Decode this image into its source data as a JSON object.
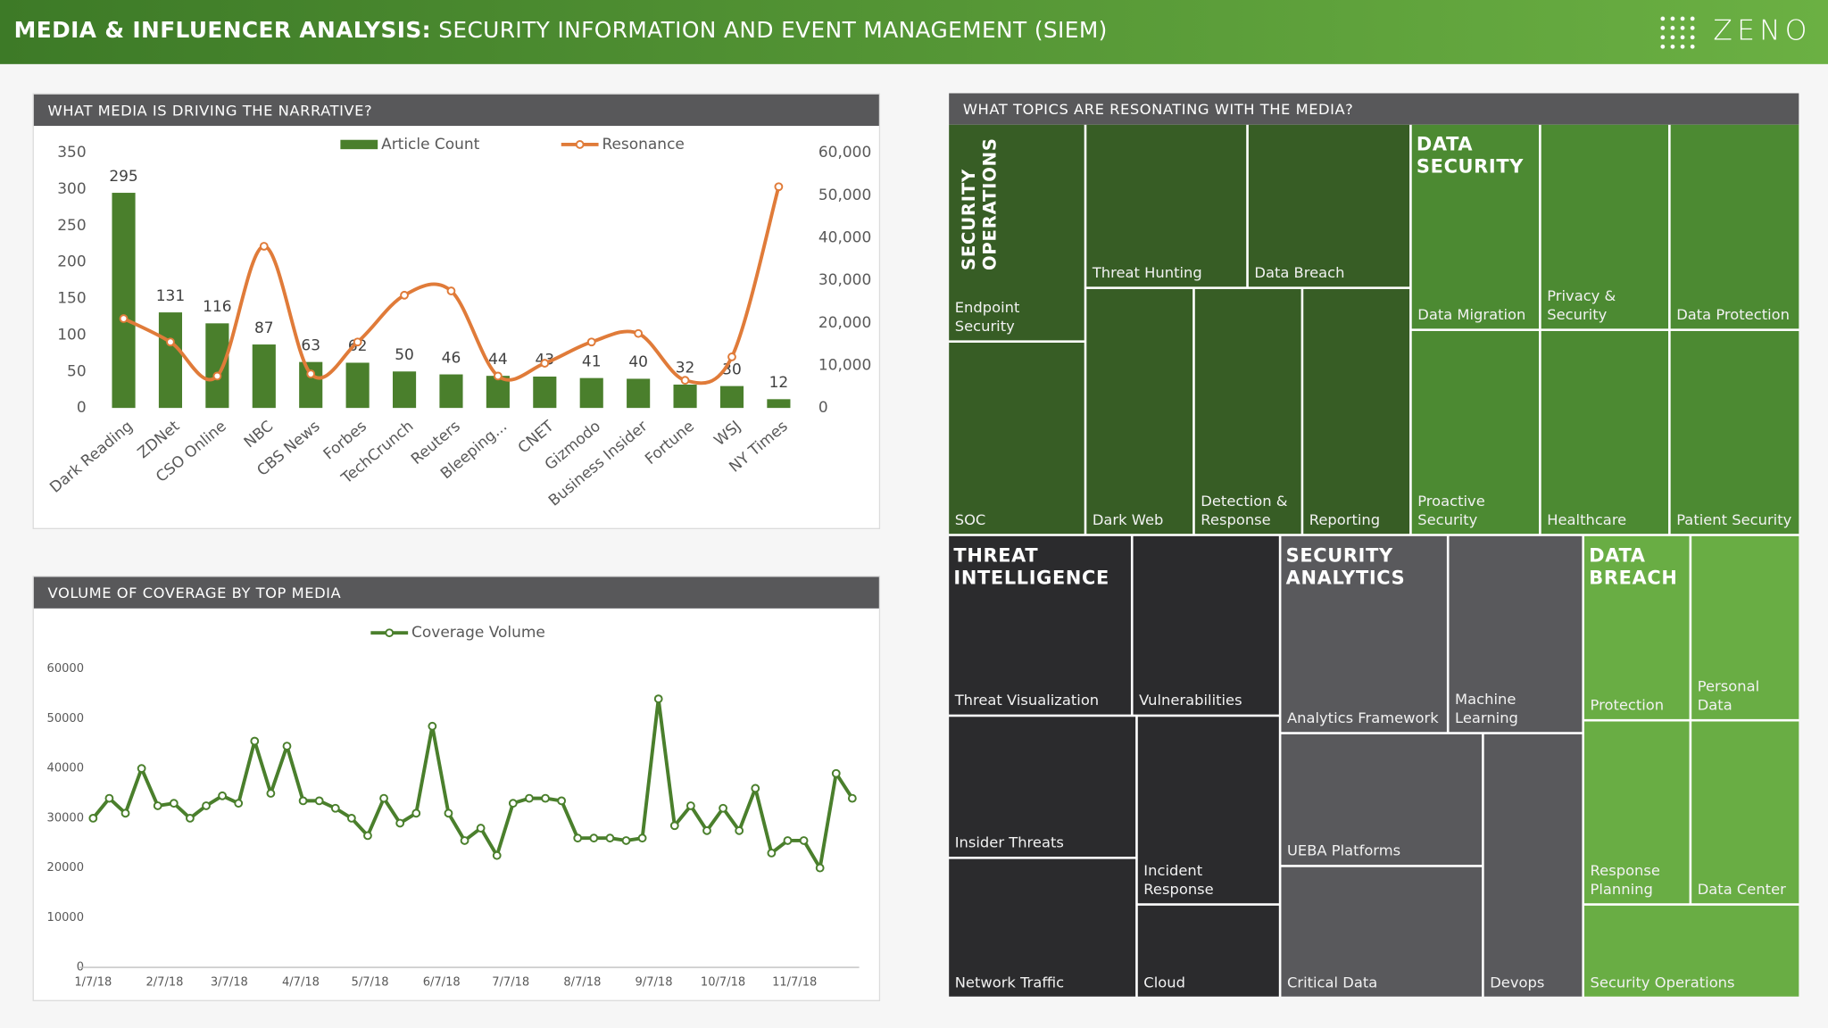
{
  "header": {
    "title_bold": "MEDIA & INFLUENCER ANALYSIS:",
    "title": "SECURITY INFORMATION AND EVENT MANAGEMENT (SIEM)",
    "logo": "ZENO"
  },
  "chart_data": [
    {
      "type": "bar",
      "title": "WHAT MEDIA IS DRIVING THE NARRATIVE?",
      "categories": [
        "Dark Reading",
        "ZDNet",
        "CSO Online",
        "NBC",
        "CBS News",
        "Forbes",
        "TechCrunch",
        "Reuters",
        "Bleeping...",
        "CNET",
        "Gizmodo",
        "Business Insider",
        "Fortune",
        "WSJ",
        "NY Times"
      ],
      "series": [
        {
          "name": "Article Count",
          "color": "#4a7f2c",
          "values": [
            295,
            131,
            116,
            87,
            63,
            62,
            50,
            46,
            44,
            43,
            41,
            40,
            32,
            30,
            12
          ]
        },
        {
          "name": "Resonance",
          "color": "#e07b39",
          "type": "line",
          "axis": "y2",
          "values": [
            21000,
            15500,
            7500,
            38000,
            8000,
            15500,
            26500,
            27500,
            7500,
            10500,
            15500,
            17500,
            6500,
            12000,
            52000
          ]
        }
      ],
      "ylim": [
        0,
        350
      ],
      "yticks": [
        0,
        50,
        100,
        150,
        200,
        250,
        300,
        350
      ],
      "y2lim": [
        0,
        60000
      ],
      "y2ticks": [
        0,
        {
          "value": 10000,
          "label": "10,000"
        },
        {
          "value": 20000,
          "label": "20,000"
        },
        {
          "value": 30000,
          "label": "30,000"
        },
        {
          "value": 40000,
          "label": "40,000"
        },
        {
          "value": 50000,
          "label": "50,000"
        },
        {
          "value": 60000,
          "label": "60,000"
        }
      ],
      "legend": "top"
    },
    {
      "type": "line",
      "title": "VOLUME OF COVERAGE BY TOP MEDIA",
      "x": [
        "1/7/18",
        "1/14/18",
        "1/21/18",
        "1/28/18",
        "2/4/18",
        "2/11/18",
        "2/18/18",
        "2/25/18",
        "3/4/18",
        "3/11/18",
        "3/18/18",
        "3/25/18",
        "4/1/18",
        "4/8/18",
        "4/15/18",
        "4/22/18",
        "4/29/18",
        "5/6/18",
        "5/13/18",
        "5/20/18",
        "5/27/18",
        "6/3/18",
        "6/10/18",
        "6/17/18",
        "6/24/18",
        "7/1/18",
        "7/8/18",
        "7/15/18",
        "7/22/18",
        "7/29/18",
        "8/5/18",
        "8/12/18",
        "8/19/18",
        "8/26/18",
        "9/2/18",
        "9/9/18",
        "9/16/18",
        "9/23/18",
        "9/30/18",
        "10/7/18",
        "10/14/18",
        "10/21/18",
        "10/28/18",
        "11/4/18",
        "11/11/18",
        "11/18/18",
        "11/25/18",
        "12/2/18"
      ],
      "series": [
        {
          "name": "Coverage Volume",
          "color": "#4a7f2c",
          "values": [
            30000,
            34000,
            31000,
            40000,
            32500,
            33000,
            30000,
            32500,
            34500,
            33000,
            45500,
            35000,
            44500,
            33500,
            33500,
            32000,
            30000,
            26500,
            34000,
            29000,
            31000,
            48500,
            31000,
            25500,
            28000,
            22500,
            33000,
            34000,
            34000,
            33500,
            26000,
            26000,
            26000,
            25500,
            26000,
            54000,
            28500,
            32500,
            27500,
            32000,
            27500,
            36000,
            23000,
            25500,
            25500,
            20000,
            39000,
            34000
          ]
        }
      ],
      "xlim": [
        "1/1/18",
        "12/5/18"
      ],
      "xticks": [
        "1/7/18",
        "2/7/18",
        "3/7/18",
        "4/7/18",
        "5/7/18",
        "6/7/18",
        "7/7/18",
        "8/7/18",
        "9/7/18",
        "10/7/18",
        "11/7/18"
      ],
      "ylim": [
        0,
        60000
      ],
      "yticks": [
        0,
        10000,
        20000,
        30000,
        40000,
        50000,
        60000
      ],
      "legend": "top"
    },
    {
      "type": "treemap",
      "title": "WHAT TOPICS ARE RESONATING WITH THE MEDIA?",
      "groups": [
        {
          "name": "SECURITY OPERATIONS",
          "color": "#375d25",
          "children": [
            "Endpoint Security",
            "SOC",
            "Threat Hunting",
            "Data Breach",
            "Dark Web",
            "Detection & Response",
            "Reporting"
          ]
        },
        {
          "name": "DATA SECURITY",
          "color": "#4c8a32",
          "children": [
            "Data Migration",
            "Privacy & Security",
            "Data Protection",
            "Proactive Security",
            "Healthcare",
            "Patient Security"
          ]
        },
        {
          "name": "THREAT INTELLIGENCE",
          "color": "#2b2b2d",
          "children": [
            "Threat Visualization",
            "Vulnerabilities",
            "Insider Threats",
            "Network Traffic",
            "Incident Response",
            "Cloud"
          ]
        },
        {
          "name": "SECURITY ANALYTICS",
          "color": "#59595c",
          "children": [
            "Analytics Framework",
            "Machine Learning",
            "UEBA Platforms",
            "Critical Data",
            "Devops"
          ]
        },
        {
          "name": "DATA BREACH",
          "color": "#69ad44",
          "children": [
            "Protection",
            "Personal Data",
            "Response Planning",
            "Data Center",
            "Security Operations"
          ]
        }
      ]
    }
  ]
}
